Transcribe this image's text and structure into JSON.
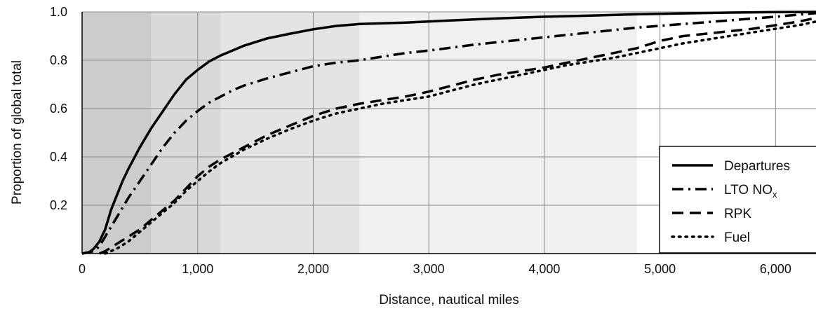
{
  "chart_data": {
    "type": "line",
    "xlabel": "Distance, nautical miles",
    "ylabel": "Proportion of global total",
    "xlim": [
      0,
      6350
    ],
    "ylim": [
      0,
      1.0
    ],
    "x_ticks": [
      0,
      1000,
      2000,
      3000,
      4000,
      5000,
      6000
    ],
    "x_tick_labels": [
      "0",
      "1,000",
      "2,000",
      "3,000",
      "4,000",
      "5,000",
      "6,000"
    ],
    "y_ticks": [
      0.2,
      0.4,
      0.6,
      0.8,
      1.0
    ],
    "y_tick_labels": [
      "0.2",
      "0.4",
      "0.6",
      "0.8",
      "1.0"
    ],
    "grid": true,
    "legend_position": "bottom-right",
    "background_bands": [
      {
        "x0": 0,
        "x1": 600,
        "color": "#cccccc"
      },
      {
        "x0": 600,
        "x1": 1200,
        "color": "#d9d9d9"
      },
      {
        "x0": 1200,
        "x1": 2400,
        "color": "#e4e4e4"
      },
      {
        "x0": 2400,
        "x1": 4800,
        "color": "#f0f0f0"
      }
    ],
    "series": [
      {
        "name": "Departures",
        "dash": "solid",
        "points": [
          [
            0,
            0
          ],
          [
            60,
            0.005
          ],
          [
            100,
            0.02
          ],
          [
            150,
            0.05
          ],
          [
            200,
            0.1
          ],
          [
            250,
            0.18
          ],
          [
            300,
            0.24
          ],
          [
            350,
            0.3
          ],
          [
            400,
            0.35
          ],
          [
            500,
            0.44
          ],
          [
            600,
            0.52
          ],
          [
            700,
            0.59
          ],
          [
            800,
            0.66
          ],
          [
            900,
            0.72
          ],
          [
            1000,
            0.76
          ],
          [
            1100,
            0.795
          ],
          [
            1200,
            0.82
          ],
          [
            1300,
            0.84
          ],
          [
            1400,
            0.86
          ],
          [
            1500,
            0.875
          ],
          [
            1600,
            0.89
          ],
          [
            1800,
            0.91
          ],
          [
            2000,
            0.928
          ],
          [
            2200,
            0.942
          ],
          [
            2400,
            0.95
          ],
          [
            2800,
            0.956
          ],
          [
            3200,
            0.965
          ],
          [
            3600,
            0.973
          ],
          [
            4000,
            0.98
          ],
          [
            4400,
            0.985
          ],
          [
            4800,
            0.99
          ],
          [
            5200,
            0.994
          ],
          [
            5600,
            0.997
          ],
          [
            6000,
            0.999
          ],
          [
            6350,
            1.0
          ]
        ]
      },
      {
        "name": "LTO NO",
        "name_sub": "x",
        "dash": "dashdot",
        "points": [
          [
            0,
            0
          ],
          [
            100,
            0.01
          ],
          [
            150,
            0.03
          ],
          [
            200,
            0.07
          ],
          [
            300,
            0.15
          ],
          [
            400,
            0.23
          ],
          [
            500,
            0.3
          ],
          [
            600,
            0.37
          ],
          [
            700,
            0.44
          ],
          [
            800,
            0.5
          ],
          [
            900,
            0.55
          ],
          [
            1000,
            0.59
          ],
          [
            1100,
            0.625
          ],
          [
            1200,
            0.65
          ],
          [
            1300,
            0.675
          ],
          [
            1400,
            0.695
          ],
          [
            1500,
            0.71
          ],
          [
            1600,
            0.725
          ],
          [
            1800,
            0.75
          ],
          [
            2000,
            0.775
          ],
          [
            2200,
            0.79
          ],
          [
            2400,
            0.8
          ],
          [
            2600,
            0.815
          ],
          [
            2800,
            0.83
          ],
          [
            3000,
            0.84
          ],
          [
            3400,
            0.865
          ],
          [
            3800,
            0.885
          ],
          [
            4200,
            0.905
          ],
          [
            4600,
            0.925
          ],
          [
            4800,
            0.935
          ],
          [
            5200,
            0.95
          ],
          [
            5600,
            0.965
          ],
          [
            6000,
            0.98
          ],
          [
            6350,
            0.995
          ]
        ]
      },
      {
        "name": "RPK",
        "dash": "dashed",
        "points": [
          [
            150,
            0
          ],
          [
            200,
            0.01
          ],
          [
            300,
            0.04
          ],
          [
            400,
            0.07
          ],
          [
            500,
            0.1
          ],
          [
            600,
            0.14
          ],
          [
            700,
            0.18
          ],
          [
            800,
            0.22
          ],
          [
            900,
            0.27
          ],
          [
            1000,
            0.32
          ],
          [
            1100,
            0.36
          ],
          [
            1200,
            0.39
          ],
          [
            1400,
            0.44
          ],
          [
            1600,
            0.49
          ],
          [
            1800,
            0.53
          ],
          [
            2000,
            0.57
          ],
          [
            2200,
            0.6
          ],
          [
            2400,
            0.62
          ],
          [
            2600,
            0.635
          ],
          [
            2800,
            0.65
          ],
          [
            3000,
            0.67
          ],
          [
            3200,
            0.695
          ],
          [
            3400,
            0.72
          ],
          [
            3600,
            0.74
          ],
          [
            3800,
            0.755
          ],
          [
            4000,
            0.77
          ],
          [
            4200,
            0.79
          ],
          [
            4400,
            0.81
          ],
          [
            4600,
            0.83
          ],
          [
            4800,
            0.85
          ],
          [
            5000,
            0.88
          ],
          [
            5200,
            0.9
          ],
          [
            5400,
            0.91
          ],
          [
            5600,
            0.92
          ],
          [
            5800,
            0.93
          ],
          [
            6000,
            0.945
          ],
          [
            6200,
            0.96
          ],
          [
            6350,
            0.975
          ]
        ]
      },
      {
        "name": "Fuel",
        "dash": "dotted",
        "points": [
          [
            200,
            0
          ],
          [
            300,
            0.02
          ],
          [
            400,
            0.05
          ],
          [
            500,
            0.09
          ],
          [
            600,
            0.13
          ],
          [
            700,
            0.17
          ],
          [
            800,
            0.21
          ],
          [
            900,
            0.26
          ],
          [
            1000,
            0.3
          ],
          [
            1100,
            0.34
          ],
          [
            1200,
            0.375
          ],
          [
            1400,
            0.43
          ],
          [
            1600,
            0.475
          ],
          [
            1800,
            0.515
          ],
          [
            2000,
            0.55
          ],
          [
            2200,
            0.58
          ],
          [
            2400,
            0.6
          ],
          [
            2600,
            0.62
          ],
          [
            2800,
            0.635
          ],
          [
            3000,
            0.65
          ],
          [
            3200,
            0.675
          ],
          [
            3400,
            0.7
          ],
          [
            3600,
            0.72
          ],
          [
            3800,
            0.74
          ],
          [
            4000,
            0.76
          ],
          [
            4200,
            0.78
          ],
          [
            4400,
            0.795
          ],
          [
            4600,
            0.81
          ],
          [
            4800,
            0.83
          ],
          [
            5000,
            0.85
          ],
          [
            5200,
            0.87
          ],
          [
            5400,
            0.885
          ],
          [
            5600,
            0.9
          ],
          [
            5800,
            0.915
          ],
          [
            6000,
            0.93
          ],
          [
            6200,
            0.945
          ],
          [
            6350,
            0.96
          ]
        ]
      }
    ]
  }
}
